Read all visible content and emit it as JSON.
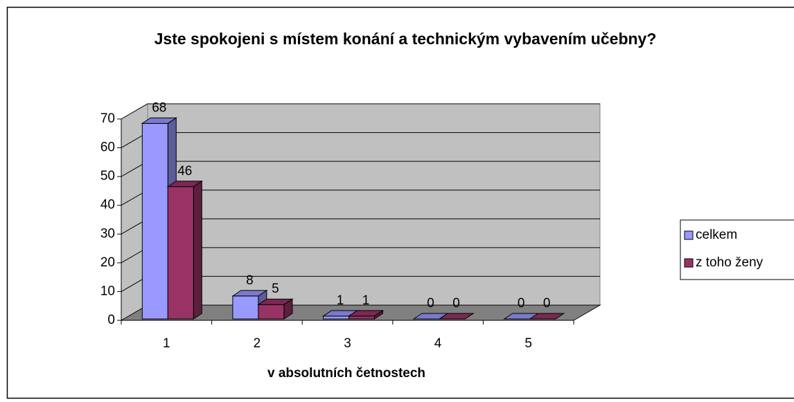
{
  "chart_data": {
    "type": "bar3d",
    "title": "Jste spokojeni s místem konání a technickým vybavením učebny?",
    "x_label": "v absolutních četnostech",
    "categories": [
      "1",
      "2",
      "3",
      "4",
      "5"
    ],
    "series": [
      {
        "name": "celkem",
        "color": "#9999ff",
        "values": [
          68,
          8,
          1,
          0,
          0
        ]
      },
      {
        "name": "z toho ženy",
        "color": "#993366",
        "values": [
          46,
          5,
          1,
          0,
          0
        ]
      }
    ],
    "ylim": [
      0,
      70
    ],
    "yticks": [
      0,
      10,
      20,
      30,
      40,
      50,
      60,
      70
    ],
    "grid": true,
    "legend": "right"
  }
}
